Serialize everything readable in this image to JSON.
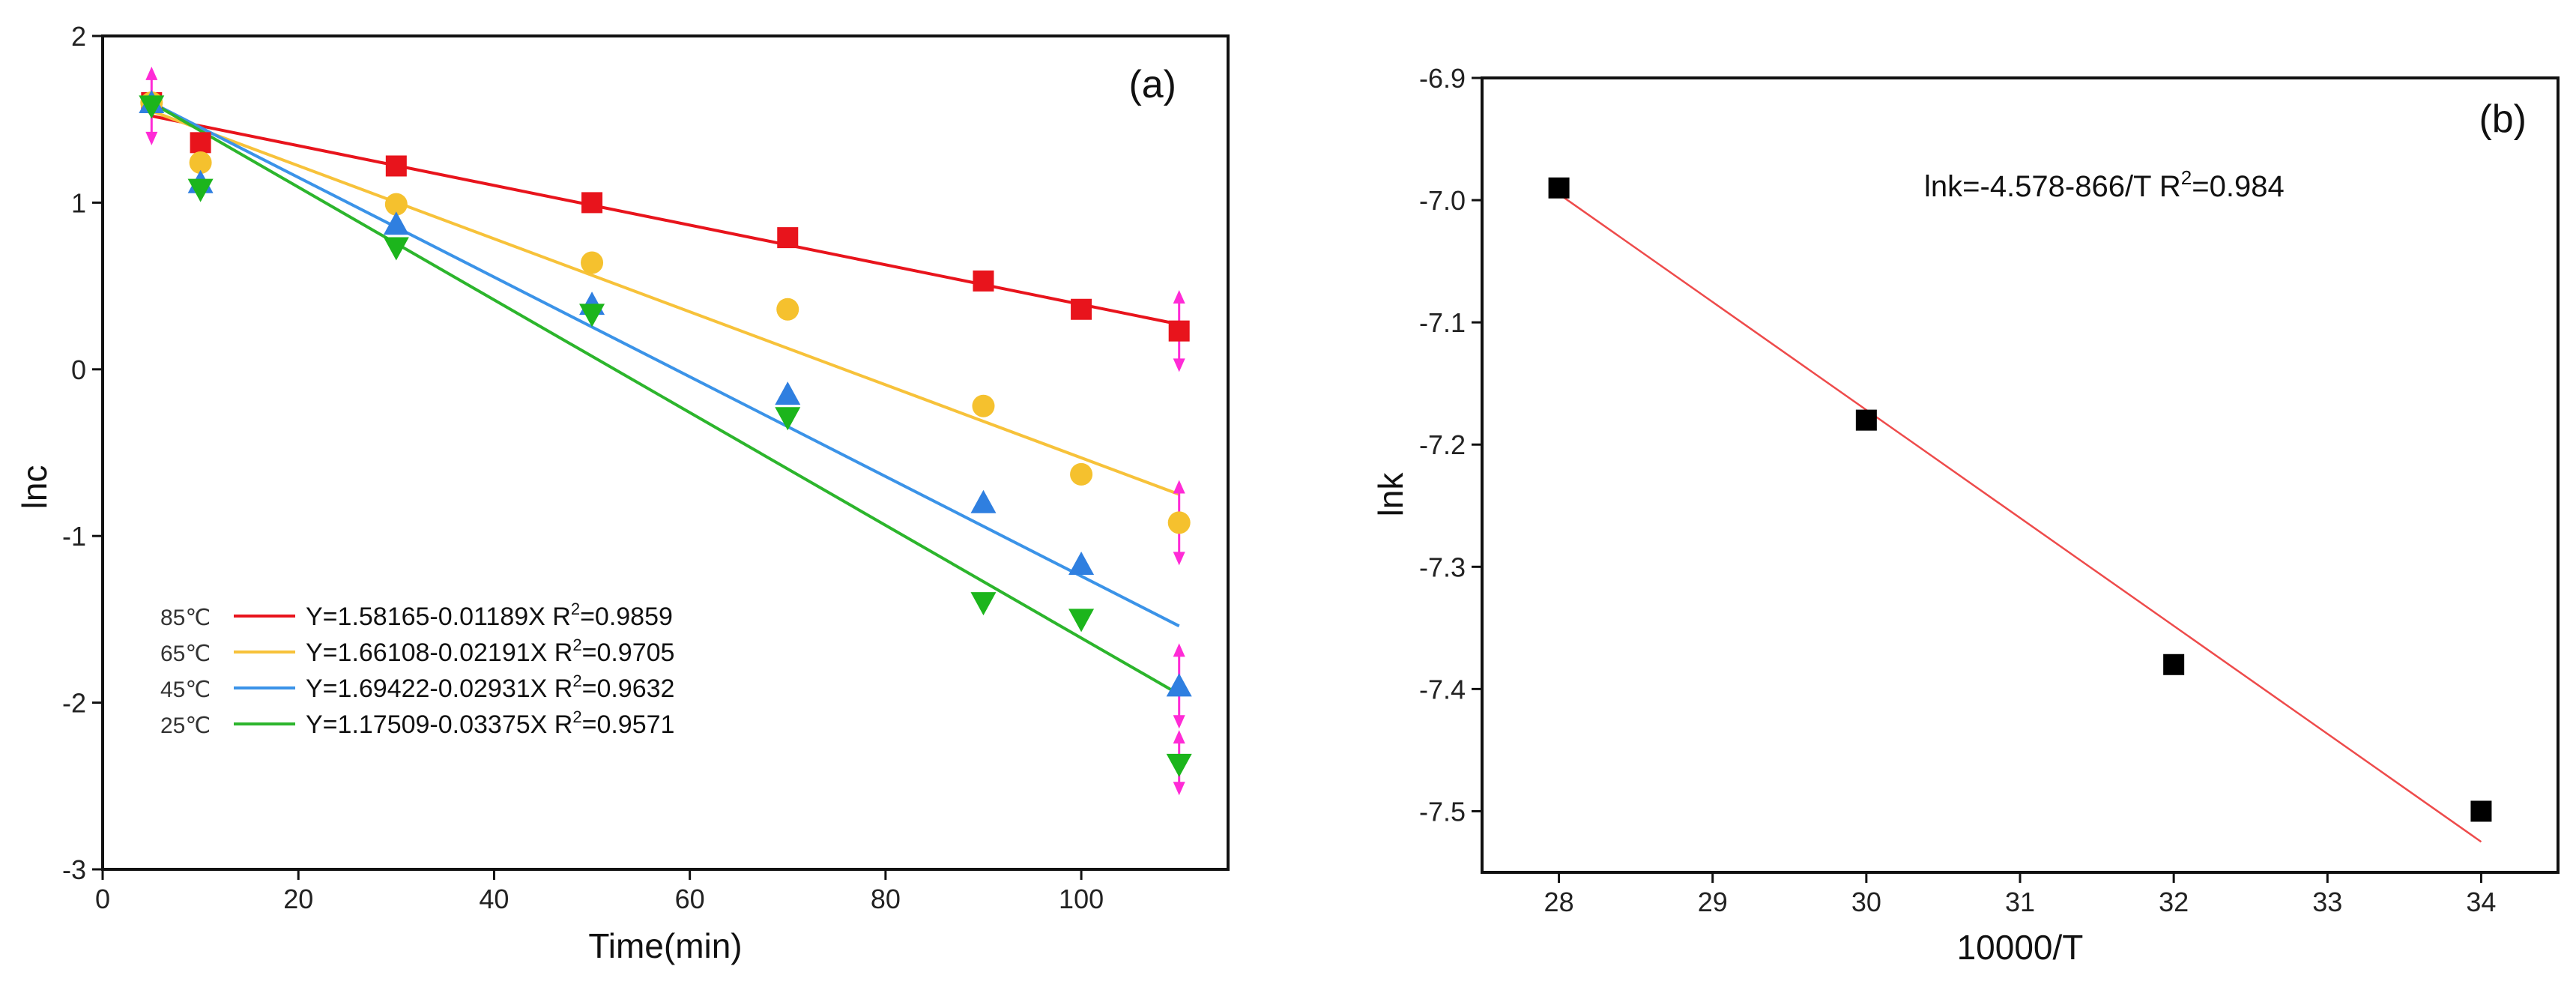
{
  "chart_data": [
    {
      "type": "scatter",
      "panel_label": "(a)",
      "xlabel": "Time(min)",
      "ylabel": "lnc",
      "xlim": [
        0,
        115
      ],
      "ylim": [
        -3,
        2
      ],
      "x_ticks": [
        0,
        20,
        40,
        60,
        80,
        100
      ],
      "x_tick_labels": [
        "0",
        "20",
        "40",
        "60",
        "80",
        "100"
      ],
      "y_ticks": [
        -3,
        -2,
        -1,
        0,
        1,
        2
      ],
      "y_tick_labels": [
        "-3",
        "-2",
        "-1",
        "0",
        "1",
        "2"
      ],
      "legend_position": "bottom-left",
      "series": [
        {
          "name": "85℃",
          "color": "#e8141c",
          "marker": "square",
          "equation": "Y=1.58165-0.01189X R",
          "r2_value": "=0.9859",
          "fit": {
            "x": [
              5,
              110
            ],
            "y": [
              1.52,
              0.27
            ]
          },
          "points": [
            [
              5,
              1.6
            ],
            [
              10,
              1.36
            ],
            [
              30,
              1.22
            ],
            [
              50,
              1.0
            ],
            [
              70,
              0.79
            ],
            [
              90,
              0.53
            ],
            [
              100,
              0.36
            ],
            [
              110,
              0.23
            ]
          ]
        },
        {
          "name": "65℃",
          "color": "#f5c12e",
          "line_color": "#f7c23a",
          "marker": "circle",
          "equation": "Y=1.66108-0.02191X R",
          "r2_value": "=0.9705",
          "fit": {
            "x": [
              5,
              110
            ],
            "y": [
              1.55,
              -0.75
            ]
          },
          "points": [
            [
              5,
              1.6
            ],
            [
              10,
              1.24
            ],
            [
              30,
              0.99
            ],
            [
              50,
              0.64
            ],
            [
              70,
              0.36
            ],
            [
              90,
              -0.22
            ],
            [
              100,
              -0.63
            ],
            [
              110,
              -0.92
            ]
          ]
        },
        {
          "name": "45℃",
          "color": "#2f7fe0",
          "line_color": "#3b93e8",
          "marker": "triangle-up",
          "equation": "Y=1.69422-0.02931X R",
          "r2_value": "=0.9632",
          "fit": {
            "x": [
              5,
              110
            ],
            "y": [
              1.6,
              -1.54
            ]
          },
          "points": [
            [
              5,
              1.6
            ],
            [
              10,
              1.12
            ],
            [
              30,
              0.87
            ],
            [
              50,
              0.39
            ],
            [
              70,
              -0.15
            ],
            [
              90,
              -0.8
            ],
            [
              100,
              -1.17
            ],
            [
              110,
              -1.9
            ]
          ]
        },
        {
          "name": "25℃",
          "color": "#1cb51c",
          "line_color": "#2cb52c",
          "marker": "triangle-down",
          "equation": "Y=1.17509-0.03375X R",
          "r2_value": "=0.9571",
          "fit": {
            "x": [
              5,
              110
            ],
            "y": [
              1.6,
              -1.95
            ]
          },
          "points": [
            [
              5,
              1.58
            ],
            [
              10,
              1.08
            ],
            [
              30,
              0.73
            ],
            [
              50,
              0.33
            ],
            [
              70,
              -0.29
            ],
            [
              90,
              -1.4
            ],
            [
              100,
              -1.5
            ],
            [
              110,
              -2.37
            ]
          ]
        }
      ],
      "error_bars": {
        "color": "#ff2bd6",
        "items": [
          {
            "x": 5,
            "y": 1.58,
            "low": 1.38,
            "high": 1.78
          },
          {
            "x": 110,
            "y": 0.23,
            "low": 0.02,
            "high": 0.44
          },
          {
            "x": 110,
            "y": -0.92,
            "low": -1.14,
            "high": -0.7
          },
          {
            "x": 110,
            "y": -1.9,
            "low": -2.12,
            "high": -1.68
          },
          {
            "x": 110,
            "y": -2.37,
            "low": -2.52,
            "high": -2.2
          }
        ]
      }
    },
    {
      "type": "scatter",
      "panel_label": "(b)",
      "xlabel": "10000/T",
      "ylabel": "lnk",
      "xlim": [
        27.5,
        34.5
      ],
      "ylim": [
        -7.55,
        -6.9
      ],
      "x_ticks": [
        28,
        29,
        30,
        31,
        32,
        33,
        34
      ],
      "x_tick_labels": [
        "28",
        "29",
        "30",
        "31",
        "32",
        "33",
        "34"
      ],
      "y_ticks": [
        -7.5,
        -7.4,
        -7.3,
        -7.2,
        -7.1,
        -7.0,
        -6.9
      ],
      "y_tick_labels": [
        "-7.5",
        "-7.4",
        "-7.3",
        "-7.2",
        "-7.1",
        "-7.0",
        "-6.9"
      ],
      "annotation": "lnk=-4.578-866/T  R",
      "annotation_r2": "=0.984",
      "series": [
        {
          "name": "lnk",
          "color": "#000000",
          "marker": "square",
          "points": [
            [
              28,
              -6.99
            ],
            [
              30,
              -7.18
            ],
            [
              32,
              -7.38
            ],
            [
              34,
              -7.5
            ]
          ],
          "fit": {
            "x": [
              28,
              34
            ],
            "y": [
              -6.995,
              -7.525
            ],
            "color": "#ee4b4b"
          }
        }
      ]
    }
  ]
}
